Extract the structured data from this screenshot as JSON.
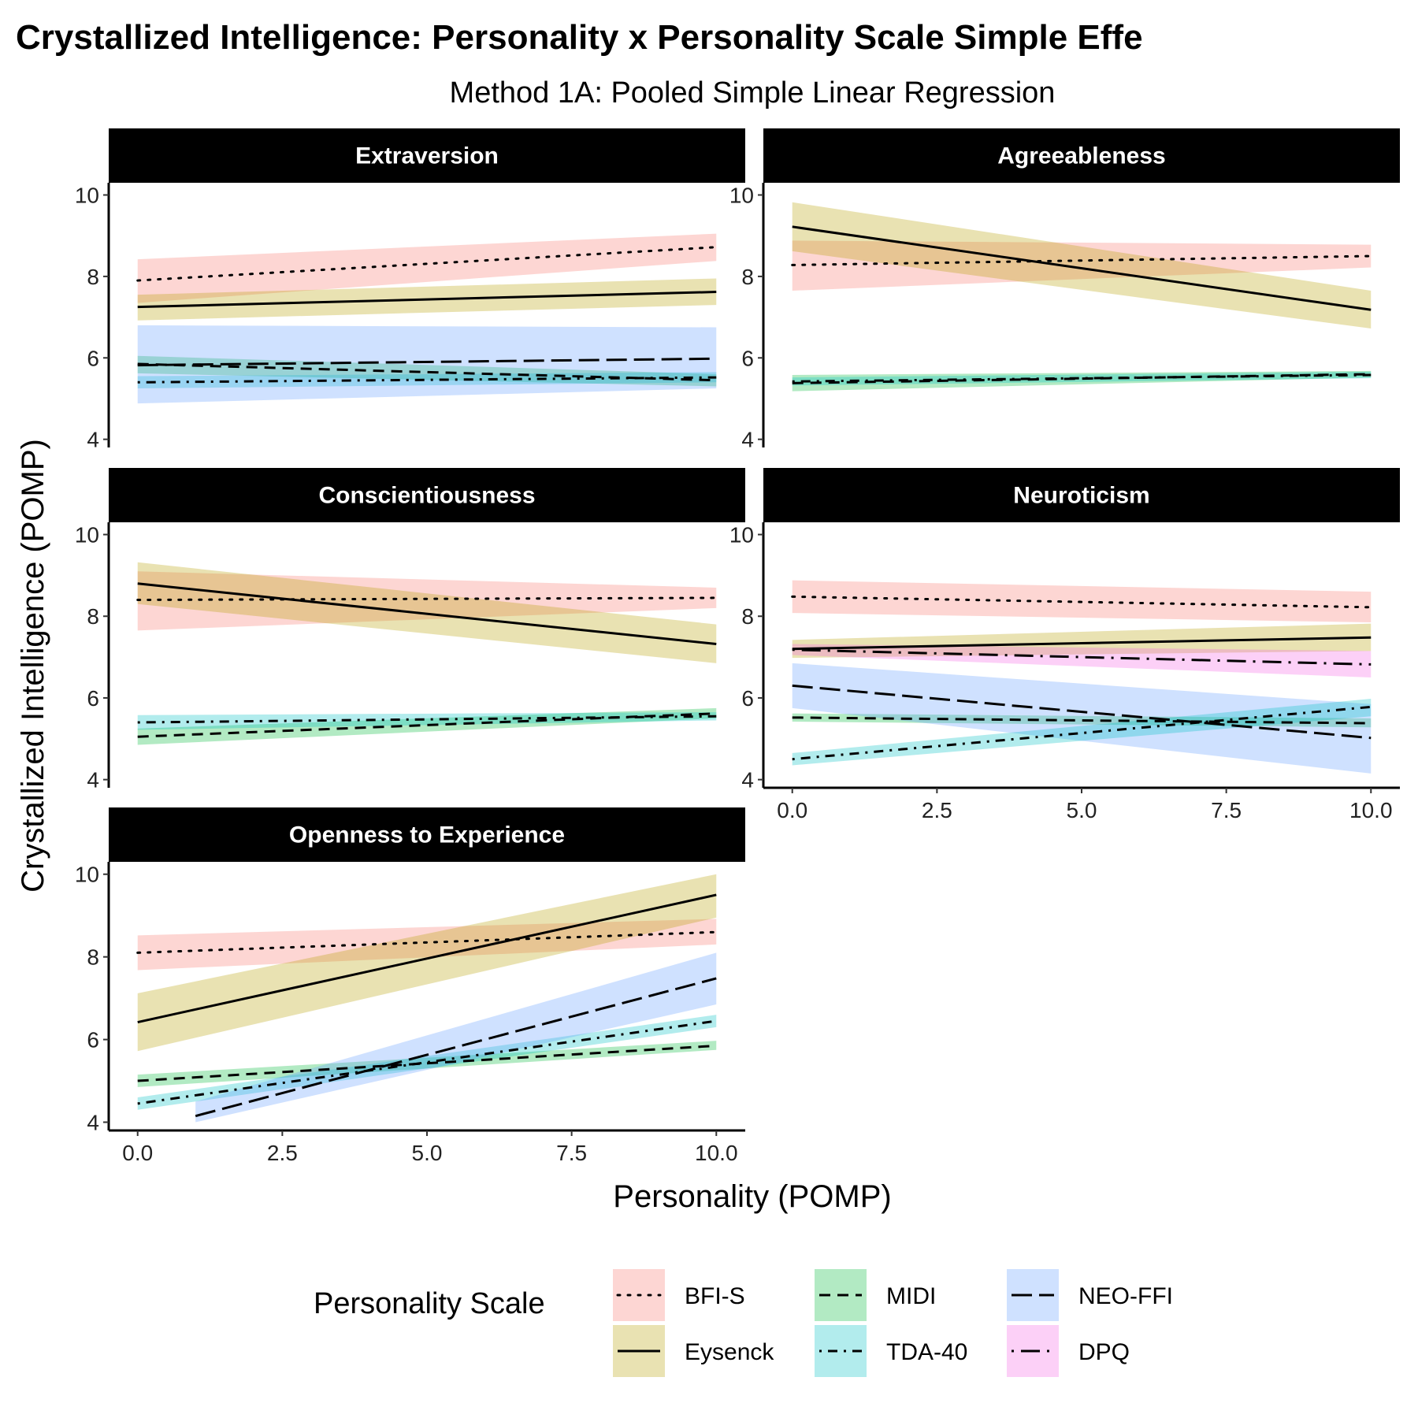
{
  "title": "Crystallized Intelligence: Personality x Personality Scale Simple Effe",
  "subtitle": "Method 1A: Pooled Simple Linear Regression",
  "chart_data": {
    "type": "line",
    "facet_layout": "3 rows x 2 columns, panels filled row-wise, bottom-right empty",
    "xlabel": "Personality (POMP)",
    "ylabel": "Crystallized Intelligence (POMP)",
    "xlim": [
      -0.5,
      10.5
    ],
    "ylim": [
      3.8,
      10.3
    ],
    "x_ticks": [
      0,
      2.5,
      5,
      7.5,
      10
    ],
    "x_tick_labels": [
      "0.0",
      "2.5",
      "5.0",
      "7.5",
      "10.0"
    ],
    "y_ticks": [
      4,
      6,
      8,
      10
    ],
    "y_tick_labels": [
      "4",
      "6",
      "8",
      "10"
    ],
    "grid": false,
    "legend_position": "bottom",
    "legend_title": "Personality Scale",
    "scales": [
      {
        "name": "BFI-S",
        "fill": "#F8766D",
        "dash": "3,10",
        "cap": "round"
      },
      {
        "name": "Eysenck",
        "fill": "#B79F00",
        "dash": "",
        "cap": "butt"
      },
      {
        "name": "MIDI",
        "fill": "#00BA38",
        "dash": "14,9",
        "cap": "butt"
      },
      {
        "name": "TDA-40",
        "fill": "#00BFC4",
        "dash": "3,8,12,8",
        "cap": "butt"
      },
      {
        "name": "NEO-FFI",
        "fill": "#619CFF",
        "dash": "26,9",
        "cap": "butt"
      },
      {
        "name": "DPQ",
        "fill": "#F564E3",
        "dash": "3,9,24,9",
        "cap": "butt"
      }
    ],
    "panels": [
      {
        "name": "Extraversion",
        "show_x_axis": false,
        "series": [
          {
            "scale": "BFI-S",
            "x": [
              0,
              10
            ],
            "y": [
              7.9,
              8.72
            ],
            "lower": [
              7.35,
              8.38
            ],
            "upper": [
              8.42,
              9.05
            ]
          },
          {
            "scale": "Eysenck",
            "x": [
              0,
              10
            ],
            "y": [
              7.25,
              7.62
            ],
            "lower": [
              6.92,
              7.3
            ],
            "upper": [
              7.55,
              7.95
            ]
          },
          {
            "scale": "MIDI",
            "x": [
              0,
              10
            ],
            "y": [
              5.85,
              5.45
            ],
            "lower": [
              5.62,
              5.3
            ],
            "upper": [
              6.05,
              5.6
            ]
          },
          {
            "scale": "TDA-40",
            "x": [
              0,
              10
            ],
            "y": [
              5.4,
              5.52
            ],
            "lower": [
              5.25,
              5.4
            ],
            "upper": [
              5.55,
              5.65
            ]
          },
          {
            "scale": "NEO-FFI",
            "x": [
              0,
              10
            ],
            "y": [
              5.82,
              5.98
            ],
            "lower": [
              4.88,
              5.25
            ],
            "upper": [
              6.8,
              6.75
            ]
          }
        ]
      },
      {
        "name": "Agreeableness",
        "show_x_axis": false,
        "series": [
          {
            "scale": "BFI-S",
            "x": [
              0,
              10
            ],
            "y": [
              8.28,
              8.5
            ],
            "lower": [
              7.65,
              8.22
            ],
            "upper": [
              8.88,
              8.78
            ]
          },
          {
            "scale": "Eysenck",
            "x": [
              0,
              10
            ],
            "y": [
              9.22,
              7.18
            ],
            "lower": [
              8.62,
              6.72
            ],
            "upper": [
              9.82,
              7.65
            ]
          },
          {
            "scale": "MIDI",
            "x": [
              0,
              10
            ],
            "y": [
              5.38,
              5.6
            ],
            "lower": [
              5.18,
              5.52
            ],
            "upper": [
              5.58,
              5.68
            ]
          },
          {
            "scale": "TDA-40",
            "x": [
              0,
              10
            ],
            "y": [
              5.42,
              5.58
            ],
            "lower": [
              5.32,
              5.5
            ],
            "upper": [
              5.52,
              5.66
            ]
          }
        ]
      },
      {
        "name": "Conscientiousness",
        "show_x_axis": false,
        "series": [
          {
            "scale": "BFI-S",
            "x": [
              0,
              10
            ],
            "y": [
              8.4,
              8.45
            ],
            "lower": [
              7.65,
              8.2
            ],
            "upper": [
              9.1,
              8.7
            ]
          },
          {
            "scale": "Eysenck",
            "x": [
              0,
              10
            ],
            "y": [
              8.8,
              7.32
            ],
            "lower": [
              8.3,
              6.85
            ],
            "upper": [
              9.32,
              7.8
            ]
          },
          {
            "scale": "MIDI",
            "x": [
              0,
              10
            ],
            "y": [
              5.05,
              5.62
            ],
            "lower": [
              4.85,
              5.5
            ],
            "upper": [
              5.25,
              5.75
            ]
          },
          {
            "scale": "TDA-40",
            "x": [
              0,
              10
            ],
            "y": [
              5.4,
              5.55
            ],
            "lower": [
              5.22,
              5.45
            ],
            "upper": [
              5.58,
              5.65
            ]
          }
        ]
      },
      {
        "name": "Neuroticism",
        "show_x_axis": true,
        "series": [
          {
            "scale": "BFI-S",
            "x": [
              0,
              10
            ],
            "y": [
              8.48,
              8.22
            ],
            "lower": [
              8.08,
              7.85
            ],
            "upper": [
              8.88,
              8.6
            ]
          },
          {
            "scale": "Eysenck",
            "x": [
              0,
              10
            ],
            "y": [
              7.2,
              7.48
            ],
            "lower": [
              6.98,
              7.15
            ],
            "upper": [
              7.42,
              7.82
            ]
          },
          {
            "scale": "DPQ",
            "x": [
              0,
              10
            ],
            "y": [
              7.18,
              6.82
            ],
            "lower": [
              7.05,
              6.5
            ],
            "upper": [
              7.32,
              7.15
            ]
          },
          {
            "scale": "MIDI",
            "x": [
              0,
              10
            ],
            "y": [
              5.52,
              5.38
            ],
            "lower": [
              5.42,
              5.28
            ],
            "upper": [
              5.62,
              5.5
            ]
          },
          {
            "scale": "NEO-FFI",
            "x": [
              0,
              10
            ],
            "y": [
              6.3,
              5.02
            ],
            "lower": [
              5.75,
              4.15
            ],
            "upper": [
              6.85,
              5.85
            ]
          },
          {
            "scale": "TDA-40",
            "x": [
              0,
              10
            ],
            "y": [
              4.5,
              5.78
            ],
            "lower": [
              4.35,
              5.55
            ],
            "upper": [
              4.65,
              5.98
            ]
          }
        ]
      },
      {
        "name": "Openness to Experience",
        "show_x_axis": true,
        "series": [
          {
            "scale": "BFI-S",
            "x": [
              0,
              10
            ],
            "y": [
              8.1,
              8.6
            ],
            "lower": [
              7.68,
              8.3
            ],
            "upper": [
              8.52,
              8.92
            ]
          },
          {
            "scale": "Eysenck",
            "x": [
              0,
              10
            ],
            "y": [
              6.42,
              9.5
            ],
            "lower": [
              5.72,
              8.95
            ],
            "upper": [
              7.12,
              10.0
            ]
          },
          {
            "scale": "MIDI",
            "x": [
              0,
              10
            ],
            "y": [
              5.0,
              5.85
            ],
            "lower": [
              4.85,
              5.75
            ],
            "upper": [
              5.15,
              5.97
            ]
          },
          {
            "scale": "TDA-40",
            "x": [
              0,
              10
            ],
            "y": [
              4.45,
              6.45
            ],
            "lower": [
              4.3,
              6.3
            ],
            "upper": [
              4.6,
              6.6
            ]
          },
          {
            "scale": "NEO-FFI",
            "x": [
              1,
              10
            ],
            "y": [
              4.15,
              7.48
            ],
            "lower": [
              4.0,
              6.85
            ],
            "upper": [
              4.5,
              8.1
            ]
          }
        ]
      }
    ]
  }
}
